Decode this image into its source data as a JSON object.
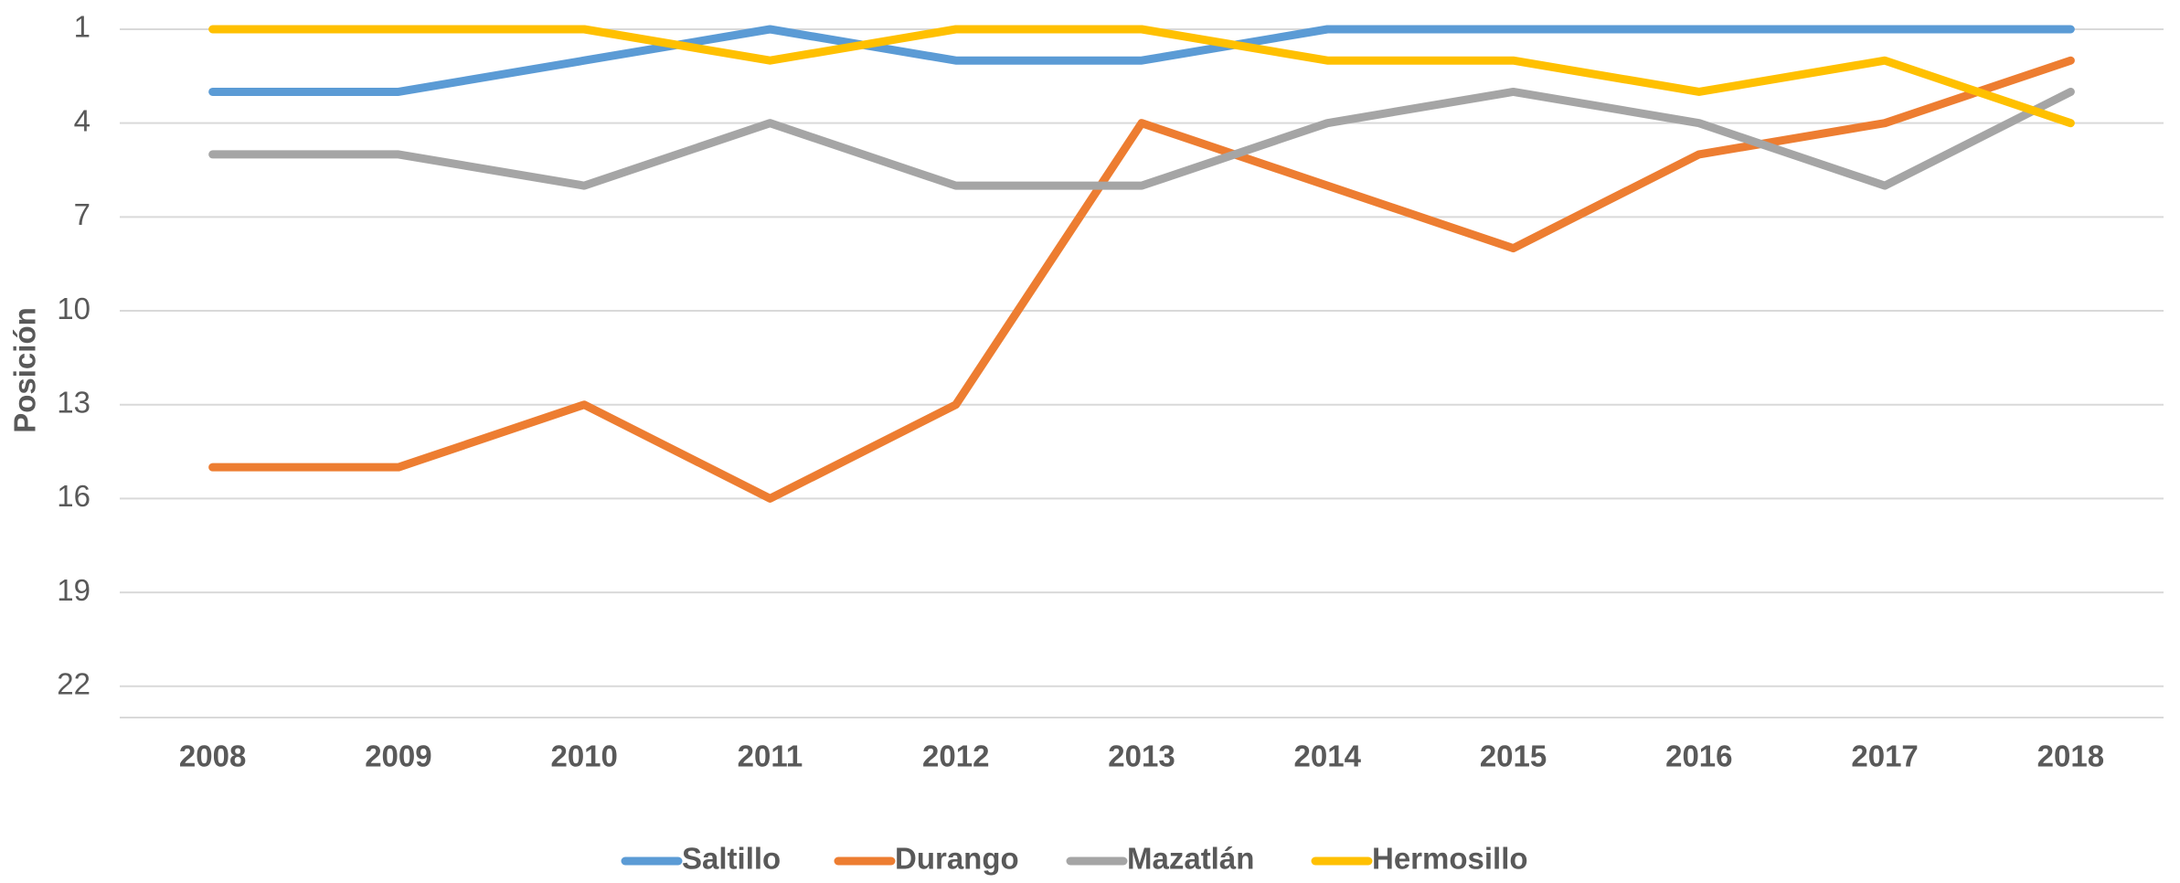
{
  "chart_data": {
    "type": "line",
    "y_axis_label": "Posición",
    "categories": [
      "2008",
      "2009",
      "2010",
      "2011",
      "2012",
      "2013",
      "2014",
      "2015",
      "2016",
      "2017",
      "2018"
    ],
    "series": [
      {
        "name": "Saltillo",
        "color": "#5b9bd5",
        "values": [
          3,
          3,
          2,
          1,
          2,
          2,
          1,
          1,
          1,
          1,
          1
        ]
      },
      {
        "name": "Durango",
        "color": "#ed7d31",
        "values": [
          15,
          15,
          13,
          16,
          13,
          4,
          6,
          8,
          5,
          4,
          2
        ]
      },
      {
        "name": "Mazatlán",
        "color": "#a5a5a5",
        "values": [
          5,
          5,
          6,
          4,
          6,
          6,
          4,
          3,
          4,
          6,
          3
        ]
      },
      {
        "name": "Hermosillo",
        "color": "#ffc000",
        "values": [
          1,
          1,
          1,
          2,
          1,
          1,
          2,
          2,
          3,
          2,
          4
        ]
      }
    ],
    "ylim": [
      1,
      23
    ],
    "yticks": [
      1,
      4,
      7,
      10,
      13,
      16,
      19,
      22
    ],
    "y_inverted": true,
    "grid": true,
    "legend": "bottom"
  }
}
